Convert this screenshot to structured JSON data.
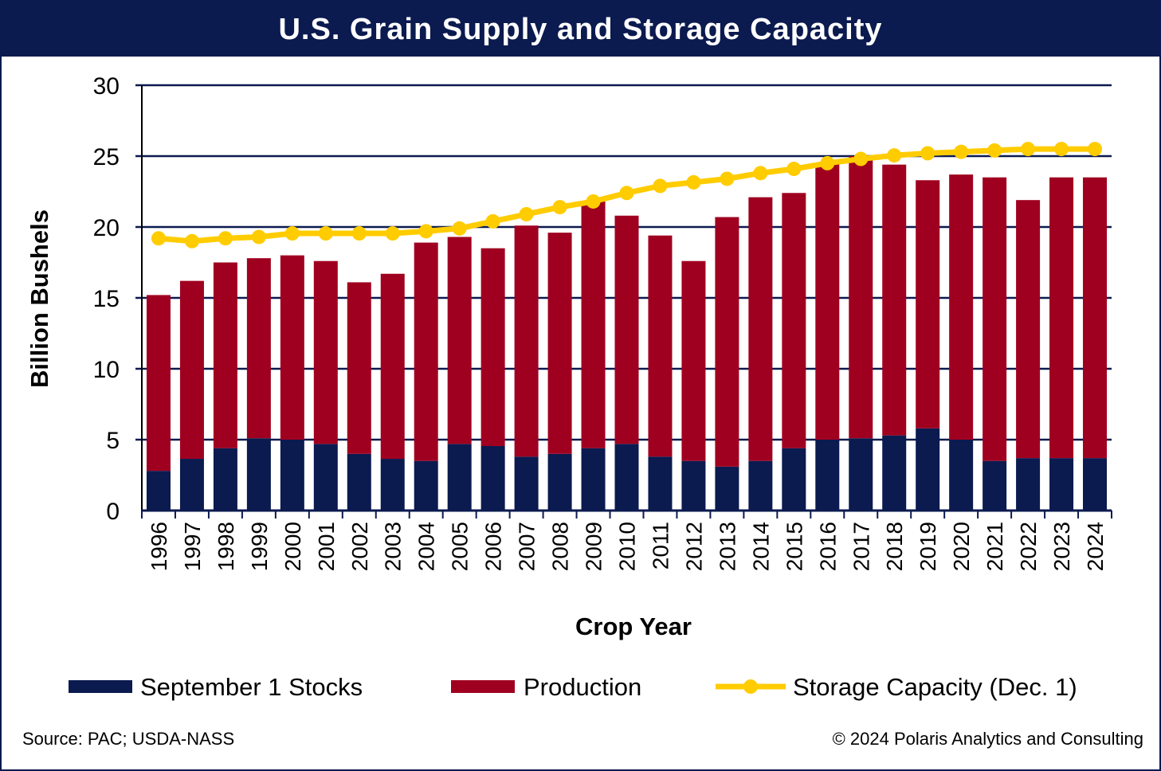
{
  "title": "U.S. Grain Supply and Storage Capacity",
  "source": "Source:  PAC; USDA-NASS",
  "copyright": "© 2024  Polaris Analytics and Consulting",
  "chart_data": {
    "type": "bar",
    "stacked": true,
    "title": "U.S. Grain Supply and Storage Capacity",
    "xlabel": "Crop Year",
    "ylabel": "Billion Bushels",
    "ylim": [
      0,
      30
    ],
    "yticks": [
      0,
      5,
      10,
      15,
      20,
      25,
      30
    ],
    "grid": true,
    "legend_position": "bottom",
    "categories": [
      "1996",
      "1997",
      "1998",
      "1999",
      "2000",
      "2001",
      "2002",
      "2003",
      "2004",
      "2005",
      "2006",
      "2007",
      "2008",
      "2009",
      "2010",
      "2011",
      "2012",
      "2013",
      "2014",
      "2015",
      "2016",
      "2017",
      "2018",
      "2019",
      "2020",
      "2021",
      "2022",
      "2023",
      "2024"
    ],
    "series": [
      {
        "name": "September 1 Stocks",
        "type": "bar",
        "color": "#0b1a4f",
        "values": [
          2.8,
          3.65,
          4.4,
          5.1,
          5.0,
          4.7,
          4.0,
          3.65,
          3.5,
          4.7,
          4.55,
          3.8,
          4.0,
          4.4,
          4.7,
          3.8,
          3.5,
          3.1,
          3.5,
          4.4,
          5.0,
          5.1,
          5.3,
          5.8,
          5.0,
          3.5,
          3.7,
          3.7,
          3.7
        ]
      },
      {
        "name": "Production",
        "type": "bar",
        "color": "#a00020",
        "values": [
          12.4,
          12.55,
          13.1,
          12.7,
          13.0,
          12.9,
          12.1,
          13.05,
          15.4,
          14.6,
          13.95,
          16.3,
          15.6,
          17.4,
          16.1,
          15.6,
          14.1,
          17.6,
          18.6,
          18.0,
          19.5,
          19.9,
          19.1,
          17.5,
          18.7,
          20.0,
          18.2,
          19.8,
          19.8
        ]
      },
      {
        "name": "Storage Capacity (Dec. 1)",
        "type": "line",
        "color": "#ffcc00",
        "values": [
          19.2,
          19.0,
          19.2,
          19.3,
          19.55,
          19.55,
          19.55,
          19.55,
          19.7,
          19.9,
          20.4,
          20.9,
          21.4,
          21.8,
          22.4,
          22.9,
          23.15,
          23.4,
          23.8,
          24.1,
          24.5,
          24.8,
          25.05,
          25.2,
          25.3,
          25.4,
          25.5,
          25.5,
          25.5
        ]
      }
    ]
  }
}
